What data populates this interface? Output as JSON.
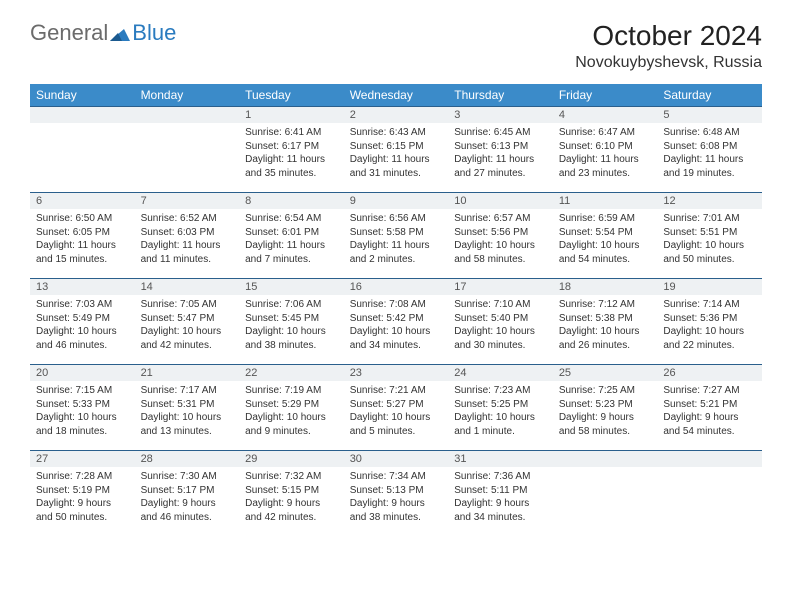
{
  "logo": {
    "general": "General",
    "blue": "Blue"
  },
  "title": "October 2024",
  "location": "Novokuybyshevsk, Russia",
  "colors": {
    "header_bg": "#3b8bc9",
    "header_text": "#ffffff",
    "daynum_bg": "#eef1f3",
    "cell_border": "#2a5f8c",
    "logo_gray": "#6b6b6b",
    "logo_blue": "#2a7bbf"
  },
  "weekdays": [
    "Sunday",
    "Monday",
    "Tuesday",
    "Wednesday",
    "Thursday",
    "Friday",
    "Saturday"
  ],
  "weeks": [
    [
      null,
      null,
      {
        "n": "1",
        "sunrise": "Sunrise: 6:41 AM",
        "sunset": "Sunset: 6:17 PM",
        "day": "Daylight: 11 hours and 35 minutes."
      },
      {
        "n": "2",
        "sunrise": "Sunrise: 6:43 AM",
        "sunset": "Sunset: 6:15 PM",
        "day": "Daylight: 11 hours and 31 minutes."
      },
      {
        "n": "3",
        "sunrise": "Sunrise: 6:45 AM",
        "sunset": "Sunset: 6:13 PM",
        "day": "Daylight: 11 hours and 27 minutes."
      },
      {
        "n": "4",
        "sunrise": "Sunrise: 6:47 AM",
        "sunset": "Sunset: 6:10 PM",
        "day": "Daylight: 11 hours and 23 minutes."
      },
      {
        "n": "5",
        "sunrise": "Sunrise: 6:48 AM",
        "sunset": "Sunset: 6:08 PM",
        "day": "Daylight: 11 hours and 19 minutes."
      }
    ],
    [
      {
        "n": "6",
        "sunrise": "Sunrise: 6:50 AM",
        "sunset": "Sunset: 6:05 PM",
        "day": "Daylight: 11 hours and 15 minutes."
      },
      {
        "n": "7",
        "sunrise": "Sunrise: 6:52 AM",
        "sunset": "Sunset: 6:03 PM",
        "day": "Daylight: 11 hours and 11 minutes."
      },
      {
        "n": "8",
        "sunrise": "Sunrise: 6:54 AM",
        "sunset": "Sunset: 6:01 PM",
        "day": "Daylight: 11 hours and 7 minutes."
      },
      {
        "n": "9",
        "sunrise": "Sunrise: 6:56 AM",
        "sunset": "Sunset: 5:58 PM",
        "day": "Daylight: 11 hours and 2 minutes."
      },
      {
        "n": "10",
        "sunrise": "Sunrise: 6:57 AM",
        "sunset": "Sunset: 5:56 PM",
        "day": "Daylight: 10 hours and 58 minutes."
      },
      {
        "n": "11",
        "sunrise": "Sunrise: 6:59 AM",
        "sunset": "Sunset: 5:54 PM",
        "day": "Daylight: 10 hours and 54 minutes."
      },
      {
        "n": "12",
        "sunrise": "Sunrise: 7:01 AM",
        "sunset": "Sunset: 5:51 PM",
        "day": "Daylight: 10 hours and 50 minutes."
      }
    ],
    [
      {
        "n": "13",
        "sunrise": "Sunrise: 7:03 AM",
        "sunset": "Sunset: 5:49 PM",
        "day": "Daylight: 10 hours and 46 minutes."
      },
      {
        "n": "14",
        "sunrise": "Sunrise: 7:05 AM",
        "sunset": "Sunset: 5:47 PM",
        "day": "Daylight: 10 hours and 42 minutes."
      },
      {
        "n": "15",
        "sunrise": "Sunrise: 7:06 AM",
        "sunset": "Sunset: 5:45 PM",
        "day": "Daylight: 10 hours and 38 minutes."
      },
      {
        "n": "16",
        "sunrise": "Sunrise: 7:08 AM",
        "sunset": "Sunset: 5:42 PM",
        "day": "Daylight: 10 hours and 34 minutes."
      },
      {
        "n": "17",
        "sunrise": "Sunrise: 7:10 AM",
        "sunset": "Sunset: 5:40 PM",
        "day": "Daylight: 10 hours and 30 minutes."
      },
      {
        "n": "18",
        "sunrise": "Sunrise: 7:12 AM",
        "sunset": "Sunset: 5:38 PM",
        "day": "Daylight: 10 hours and 26 minutes."
      },
      {
        "n": "19",
        "sunrise": "Sunrise: 7:14 AM",
        "sunset": "Sunset: 5:36 PM",
        "day": "Daylight: 10 hours and 22 minutes."
      }
    ],
    [
      {
        "n": "20",
        "sunrise": "Sunrise: 7:15 AM",
        "sunset": "Sunset: 5:33 PM",
        "day": "Daylight: 10 hours and 18 minutes."
      },
      {
        "n": "21",
        "sunrise": "Sunrise: 7:17 AM",
        "sunset": "Sunset: 5:31 PM",
        "day": "Daylight: 10 hours and 13 minutes."
      },
      {
        "n": "22",
        "sunrise": "Sunrise: 7:19 AM",
        "sunset": "Sunset: 5:29 PM",
        "day": "Daylight: 10 hours and 9 minutes."
      },
      {
        "n": "23",
        "sunrise": "Sunrise: 7:21 AM",
        "sunset": "Sunset: 5:27 PM",
        "day": "Daylight: 10 hours and 5 minutes."
      },
      {
        "n": "24",
        "sunrise": "Sunrise: 7:23 AM",
        "sunset": "Sunset: 5:25 PM",
        "day": "Daylight: 10 hours and 1 minute."
      },
      {
        "n": "25",
        "sunrise": "Sunrise: 7:25 AM",
        "sunset": "Sunset: 5:23 PM",
        "day": "Daylight: 9 hours and 58 minutes."
      },
      {
        "n": "26",
        "sunrise": "Sunrise: 7:27 AM",
        "sunset": "Sunset: 5:21 PM",
        "day": "Daylight: 9 hours and 54 minutes."
      }
    ],
    [
      {
        "n": "27",
        "sunrise": "Sunrise: 7:28 AM",
        "sunset": "Sunset: 5:19 PM",
        "day": "Daylight: 9 hours and 50 minutes."
      },
      {
        "n": "28",
        "sunrise": "Sunrise: 7:30 AM",
        "sunset": "Sunset: 5:17 PM",
        "day": "Daylight: 9 hours and 46 minutes."
      },
      {
        "n": "29",
        "sunrise": "Sunrise: 7:32 AM",
        "sunset": "Sunset: 5:15 PM",
        "day": "Daylight: 9 hours and 42 minutes."
      },
      {
        "n": "30",
        "sunrise": "Sunrise: 7:34 AM",
        "sunset": "Sunset: 5:13 PM",
        "day": "Daylight: 9 hours and 38 minutes."
      },
      {
        "n": "31",
        "sunrise": "Sunrise: 7:36 AM",
        "sunset": "Sunset: 5:11 PM",
        "day": "Daylight: 9 hours and 34 minutes."
      },
      null,
      null
    ]
  ]
}
